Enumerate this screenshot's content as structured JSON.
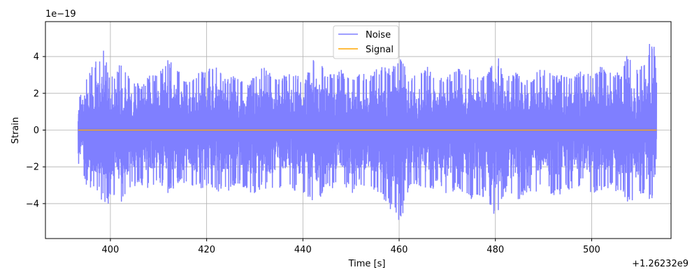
{
  "chart_data": {
    "type": "line",
    "title": "",
    "xlabel": "Time [s]",
    "ylabel": "Strain",
    "x_offset_label": "+1.26232e9",
    "y_scale_label": "1e−19",
    "xlim": [
      386.5,
      516.5
    ],
    "ylim": [
      -5.9,
      5.9
    ],
    "x_ticks": [
      400,
      420,
      440,
      460,
      480,
      500
    ],
    "x_tick_labels": [
      "400",
      "420",
      "440",
      "460",
      "480",
      "500"
    ],
    "y_ticks": [
      -4,
      -2,
      0,
      2,
      4
    ],
    "y_tick_labels": [
      "−4",
      "−2",
      "0",
      "2",
      "4"
    ],
    "grid": true,
    "legend_position": "top-center",
    "series": [
      {
        "name": "Noise",
        "color": "#7f7fff",
        "x_range": [
          393.3,
          513.5
        ],
        "envelope_top": [
          [
            393.3,
            1.7
          ],
          [
            395,
            3.1
          ],
          [
            396.5,
            3.6
          ],
          [
            397.5,
            4.0
          ],
          [
            398.4,
            4.5
          ],
          [
            400,
            3.0
          ],
          [
            402,
            3.7
          ],
          [
            404,
            3.0
          ],
          [
            406,
            2.5
          ],
          [
            408,
            3.0
          ],
          [
            410,
            3.2
          ],
          [
            411.8,
            4.2
          ],
          [
            414,
            3.3
          ],
          [
            416,
            2.6
          ],
          [
            418,
            3.2
          ],
          [
            420,
            3.3
          ],
          [
            422,
            3.8
          ],
          [
            424,
            2.8
          ],
          [
            426,
            3.1
          ],
          [
            428,
            2.5
          ],
          [
            430,
            3.0
          ],
          [
            432,
            3.5
          ],
          [
            434,
            2.8
          ],
          [
            436,
            3.0
          ],
          [
            438,
            3.3
          ],
          [
            440,
            2.7
          ],
          [
            442.8,
            4.2
          ],
          [
            444,
            3.5
          ],
          [
            446,
            3.0
          ],
          [
            448,
            3.3
          ],
          [
            450,
            3.0
          ],
          [
            452,
            3.2
          ],
          [
            454,
            3.0
          ],
          [
            456,
            3.5
          ],
          [
            458,
            3.5
          ],
          [
            460,
            4.2
          ],
          [
            462,
            3.0
          ],
          [
            464,
            3.2
          ],
          [
            466,
            3.5
          ],
          [
            468,
            3.0
          ],
          [
            470,
            3.0
          ],
          [
            472,
            3.3
          ],
          [
            474,
            3.5
          ],
          [
            476,
            3.0
          ],
          [
            478,
            3.0
          ],
          [
            480,
            4.4
          ],
          [
            482,
            3.0
          ],
          [
            484,
            3.2
          ],
          [
            486,
            2.8
          ],
          [
            488,
            3.0
          ],
          [
            490,
            3.5
          ],
          [
            492,
            3.0
          ],
          [
            494,
            3.0
          ],
          [
            496,
            2.8
          ],
          [
            498,
            3.3
          ],
          [
            500,
            3.0
          ],
          [
            502,
            3.5
          ],
          [
            504,
            3.5
          ],
          [
            506,
            3.0
          ],
          [
            507.3,
            4.6
          ],
          [
            509,
            3.2
          ],
          [
            511,
            3.8
          ],
          [
            512.8,
            5.4
          ],
          [
            513.5,
            3.0
          ]
        ],
        "envelope_bottom": [
          [
            393.3,
            -1.8
          ],
          [
            395,
            -3.0
          ],
          [
            396.5,
            -3.3
          ],
          [
            397.5,
            -3.5
          ],
          [
            399.3,
            -4.3
          ],
          [
            401,
            -3.5
          ],
          [
            402.5,
            -4.2
          ],
          [
            404,
            -3.3
          ],
          [
            406,
            -3.0
          ],
          [
            408,
            -3.3
          ],
          [
            410,
            -2.8
          ],
          [
            412,
            -3.5
          ],
          [
            414,
            -3.0
          ],
          [
            416,
            -3.2
          ],
          [
            418,
            -3.5
          ],
          [
            420,
            -3.0
          ],
          [
            422,
            -3.3
          ],
          [
            424,
            -3.5
          ],
          [
            426,
            -3.0
          ],
          [
            428,
            -3.3
          ],
          [
            430,
            -3.5
          ],
          [
            432,
            -3.2
          ],
          [
            434,
            -3.5
          ],
          [
            436,
            -3.0
          ],
          [
            438,
            -3.3
          ],
          [
            440,
            -3.5
          ],
          [
            442.7,
            -4.2
          ],
          [
            444,
            -3.5
          ],
          [
            446,
            -3.2
          ],
          [
            448,
            -3.0
          ],
          [
            450,
            -3.5
          ],
          [
            452,
            -3.0
          ],
          [
            454,
            -3.2
          ],
          [
            456,
            -3.5
          ],
          [
            458,
            -4.3
          ],
          [
            460,
            -5.2
          ],
          [
            462,
            -3.5
          ],
          [
            464,
            -3.0
          ],
          [
            466,
            -3.5
          ],
          [
            468,
            -3.0
          ],
          [
            470,
            -3.8
          ],
          [
            472,
            -3.2
          ],
          [
            474,
            -3.5
          ],
          [
            476,
            -4.0
          ],
          [
            478,
            -3.5
          ],
          [
            480,
            -4.8
          ],
          [
            482,
            -3.5
          ],
          [
            484,
            -4.0
          ],
          [
            486,
            -3.5
          ],
          [
            488,
            -3.5
          ],
          [
            490,
            -3.0
          ],
          [
            492,
            -3.8
          ],
          [
            494,
            -3.5
          ],
          [
            496,
            -3.2
          ],
          [
            498,
            -3.0
          ],
          [
            500,
            -3.5
          ],
          [
            502,
            -3.5
          ],
          [
            504,
            -3.2
          ],
          [
            506,
            -3.5
          ],
          [
            508,
            -4.2
          ],
          [
            510,
            -3.5
          ],
          [
            512,
            -4.1
          ],
          [
            513.5,
            -3.5
          ]
        ]
      },
      {
        "name": "Signal",
        "color": "#ffa500",
        "x": [
          393.3,
          513.5
        ],
        "y": [
          0,
          0
        ]
      }
    ]
  }
}
